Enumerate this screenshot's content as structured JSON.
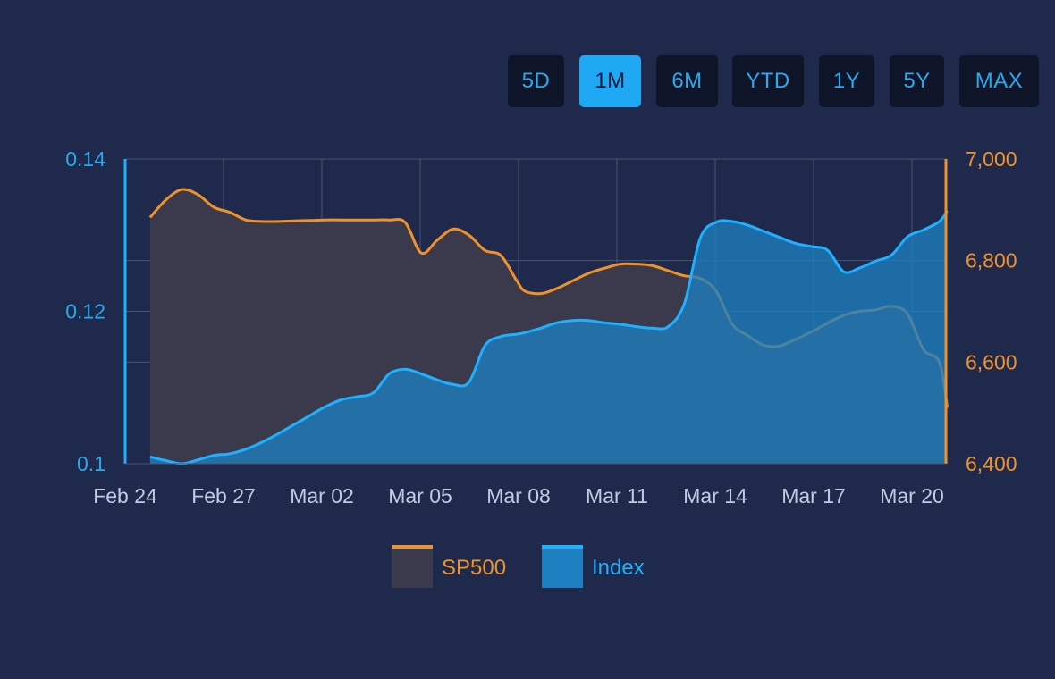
{
  "range_buttons": [
    {
      "label": "5D",
      "active": false
    },
    {
      "label": "1M",
      "active": true
    },
    {
      "label": "6M",
      "active": false
    },
    {
      "label": "YTD",
      "active": false
    },
    {
      "label": "1Y",
      "active": false
    },
    {
      "label": "5Y",
      "active": false
    },
    {
      "label": "MAX",
      "active": false
    }
  ],
  "colors": {
    "background": "#1e294b",
    "sp500_line": "#f0922c",
    "sp500_fill": "#3a3a4c",
    "index_line": "#1fb0ff",
    "index_fill": "#1e7fc0",
    "grid": "#4a5576",
    "x_tick": "#c3cbe0"
  },
  "chart_data": {
    "type": "area",
    "categories": [
      "Feb 24",
      "Feb 27",
      "Mar 02",
      "Mar 05",
      "Mar 08",
      "Mar 11",
      "Mar 14",
      "Mar 17",
      "Mar 20"
    ],
    "y_left": {
      "ticks": [
        "0.14",
        "0.12",
        "0.1"
      ],
      "range": [
        0.1,
        0.14
      ]
    },
    "y_right": {
      "ticks": [
        "7,000",
        "6,800",
        "6,600",
        "6,400"
      ],
      "range": [
        6400,
        7000
      ]
    },
    "grid": true,
    "legend_position": "bottom-center",
    "series": [
      {
        "name": "SP500",
        "axis": "right",
        "x": [
          0.2,
          0.6,
          1.0,
          1.4,
          1.8,
          2.2,
          2.6,
          3.0,
          3.4,
          3.8,
          4.2,
          4.6,
          5.0,
          5.4,
          5.8,
          6.2,
          6.6,
          7.0,
          7.4,
          7.8,
          8.2,
          8.6,
          9.0,
          9.4,
          9.6,
          10.0,
          10.4,
          10.8,
          11.2,
          11.6,
          12.0,
          12.4,
          12.8,
          13.2,
          13.6,
          14.0,
          14.4,
          14.8,
          15.2,
          15.6,
          16.0,
          16.4,
          16.8,
          17.2,
          17.6,
          18.0,
          18.4,
          18.8,
          19.2,
          19.6,
          20.0,
          20.2
        ],
        "values": [
          6885,
          6920,
          6940,
          6930,
          6905,
          6895,
          6880,
          6877,
          6877,
          6878,
          6879,
          6880,
          6880,
          6880,
          6880,
          6880,
          6875,
          6815,
          6840,
          6862,
          6850,
          6820,
          6810,
          6760,
          6740,
          6735,
          6745,
          6760,
          6775,
          6785,
          6793,
          6793,
          6790,
          6780,
          6770,
          6765,
          6740,
          6675,
          6652,
          6633,
          6632,
          6645,
          6660,
          6677,
          6692,
          6700,
          6703,
          6710,
          6695,
          6625,
          6600,
          6510
        ]
      },
      {
        "name": "Index",
        "axis": "left",
        "x": [
          0.2,
          0.6,
          1.0,
          1.4,
          1.8,
          2.2,
          2.6,
          3.0,
          3.4,
          3.8,
          4.2,
          4.6,
          5.0,
          5.4,
          5.8,
          6.2,
          6.6,
          7.0,
          7.4,
          7.8,
          8.2,
          8.6,
          9.0,
          9.4,
          9.6,
          10.0,
          10.4,
          10.8,
          11.2,
          11.6,
          12.0,
          12.4,
          12.8,
          13.2,
          13.6,
          14.0,
          14.4,
          14.8,
          15.2,
          15.6,
          16.0,
          16.4,
          16.8,
          17.2,
          17.6,
          18.0,
          18.4,
          18.8,
          19.2,
          19.6,
          20.0,
          20.2
        ],
        "values": [
          0.1009,
          0.1004,
          0.1,
          0.1005,
          0.1011,
          0.1013,
          0.1019,
          0.1028,
          0.1039,
          0.1051,
          0.1063,
          0.1075,
          0.1084,
          0.1088,
          0.1093,
          0.1118,
          0.1124,
          0.1118,
          0.111,
          0.1104,
          0.1107,
          0.1155,
          0.1167,
          0.117,
          0.1172,
          0.1178,
          0.1185,
          0.1188,
          0.1188,
          0.1185,
          0.1183,
          0.118,
          0.1178,
          0.118,
          0.121,
          0.1296,
          0.1317,
          0.1318,
          0.1313,
          0.1305,
          0.1297,
          0.1289,
          0.1285,
          0.128,
          0.1252,
          0.1257,
          0.1266,
          0.1274,
          0.1298,
          0.1307,
          0.1318,
          0.1332
        ]
      }
    ]
  }
}
